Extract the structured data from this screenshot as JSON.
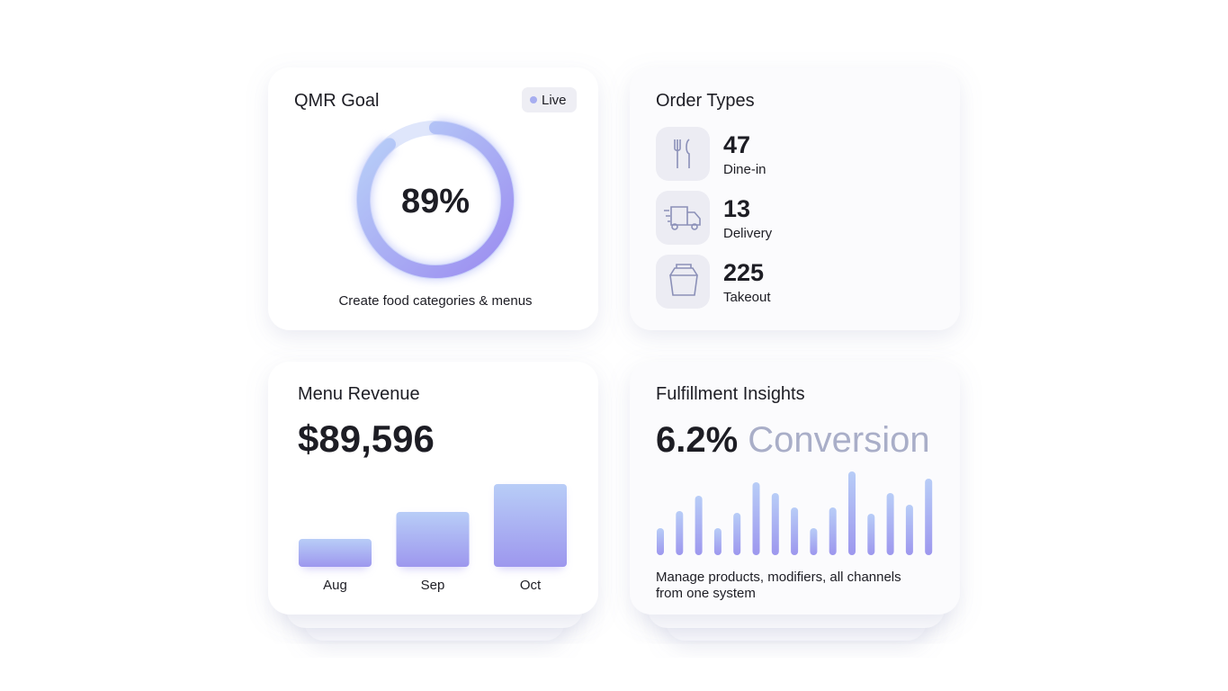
{
  "cards": {
    "goal": {
      "title": "QMR Goal",
      "badge": "Live",
      "progress": {
        "value": 89,
        "label": "89%"
      },
      "caption": "Create food categories & menus"
    },
    "orders": {
      "title": "Order Types",
      "items": [
        {
          "count": 47,
          "label": "Dine-in"
        },
        {
          "count": 13,
          "label": "Delivery"
        },
        {
          "count": 225,
          "label": "Takeout"
        }
      ]
    },
    "revenue": {
      "title": "Menu Revenue",
      "total": "$89,596",
      "categories": [
        "Aug",
        "Sep",
        "Oct"
      ],
      "values": [
        31,
        61,
        92
      ]
    },
    "fulfillment": {
      "title": "Fulfillment Insights",
      "rate": "6.2%",
      "rate_label": "Conversion",
      "values": [
        30,
        49,
        66,
        30,
        47,
        81,
        69,
        53,
        30,
        53,
        93,
        46,
        69,
        56,
        85
      ],
      "caption_lines": [
        "Manage products, modifiers, all channels",
        "from one system"
      ]
    }
  }
}
